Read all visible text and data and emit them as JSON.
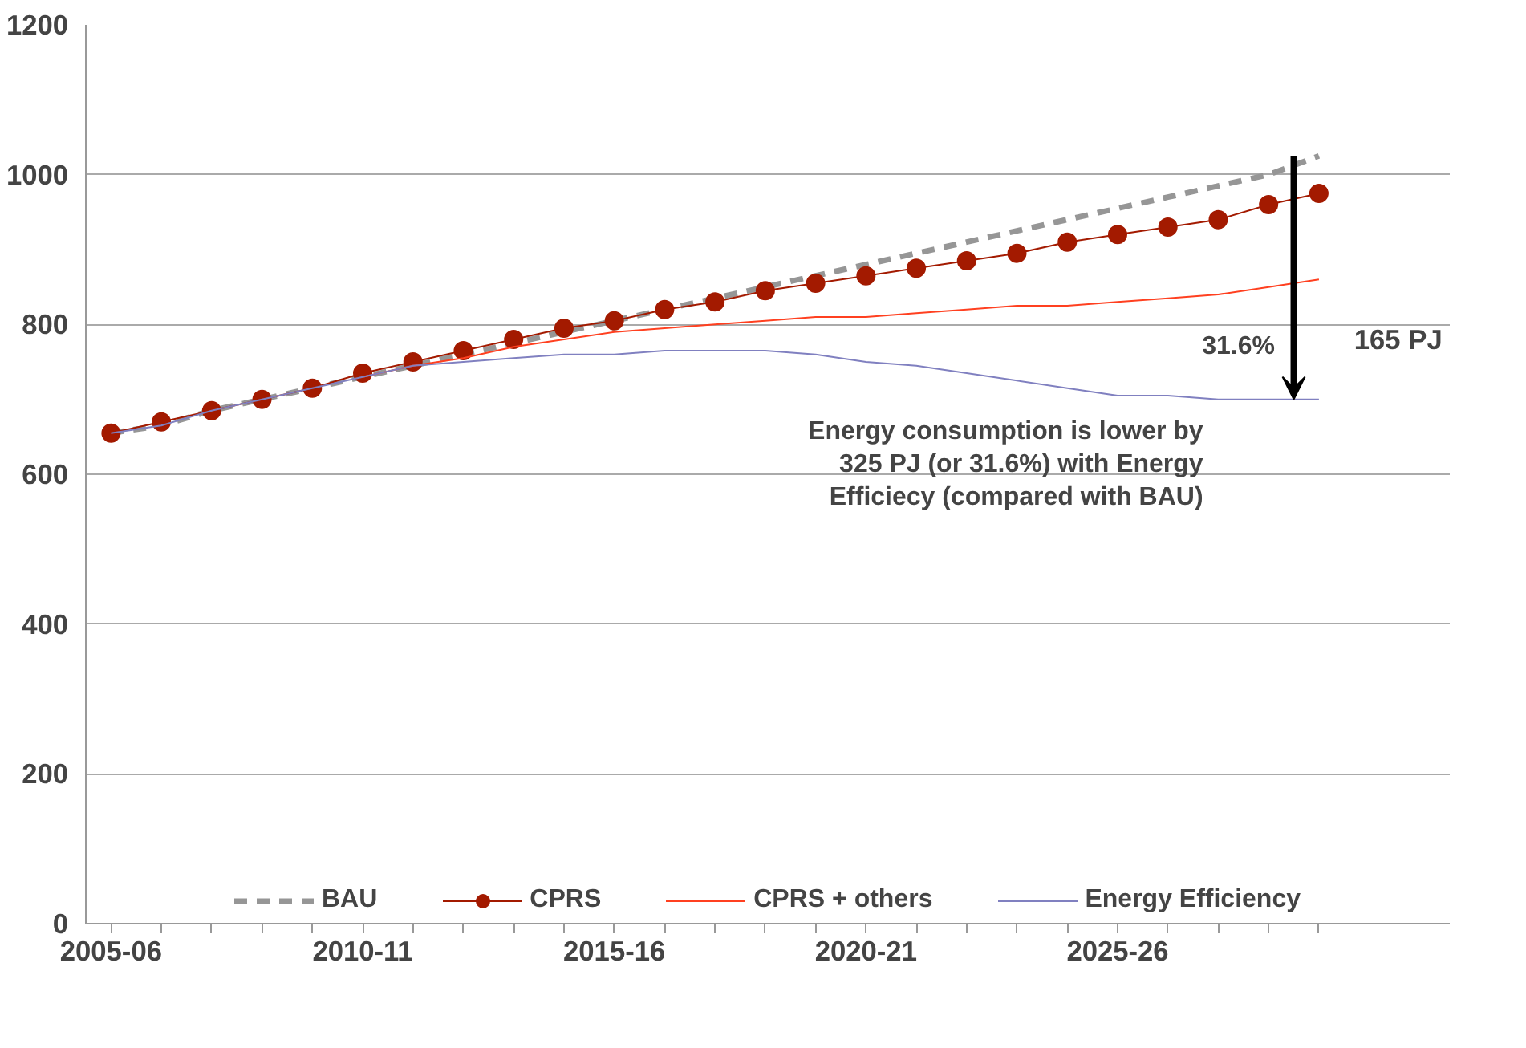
{
  "chart_data": {
    "type": "line",
    "categories": [
      "2005-06",
      null,
      null,
      null,
      null,
      "2010-11",
      null,
      null,
      null,
      null,
      "2015-16",
      null,
      null,
      null,
      null,
      "2020-21",
      null,
      null,
      null,
      null,
      "2025-26",
      null,
      null,
      null,
      null
    ],
    "ylim": [
      0,
      1200
    ],
    "yticks": [
      0,
      200,
      400,
      600,
      800,
      1000,
      1200
    ],
    "grid": "y",
    "legend": "bottom",
    "series": [
      {
        "name": "BAU",
        "color": "#969696",
        "line_style": "dashed",
        "marker": "none",
        "values": [
          655,
          665,
          685,
          700,
          715,
          730,
          745,
          760,
          775,
          790,
          805,
          820,
          835,
          850,
          865,
          880,
          895,
          910,
          925,
          940,
          955,
          970,
          985,
          1000,
          1025
        ]
      },
      {
        "name": "CPRS",
        "color": "#a31a00",
        "line_style": "solid",
        "marker": "circle",
        "values": [
          655,
          670,
          685,
          700,
          715,
          735,
          750,
          765,
          780,
          795,
          805,
          820,
          830,
          845,
          855,
          865,
          875,
          885,
          895,
          910,
          920,
          930,
          940,
          960,
          975
        ]
      },
      {
        "name": "CPRS + others",
        "color": "#ff4020",
        "line_style": "solid",
        "marker": "none",
        "values": [
          null,
          null,
          null,
          null,
          null,
          730,
          745,
          755,
          770,
          780,
          790,
          795,
          800,
          805,
          810,
          810,
          815,
          820,
          825,
          825,
          830,
          835,
          840,
          850,
          860
        ]
      },
      {
        "name": "Energy Efficiency",
        "color": "#8080c0",
        "line_style": "solid",
        "marker": "none",
        "values": [
          655,
          665,
          685,
          700,
          715,
          730,
          745,
          750,
          755,
          760,
          760,
          765,
          765,
          765,
          760,
          750,
          745,
          735,
          725,
          715,
          705,
          705,
          700,
          700,
          700
        ]
      }
    ],
    "annotations": [
      "165 PJ",
      "31.6%",
      "Energy consumption is lower by\n325 PJ (or 31.6%) with Energy\nEfficiecy (compared with BAU)"
    ]
  }
}
